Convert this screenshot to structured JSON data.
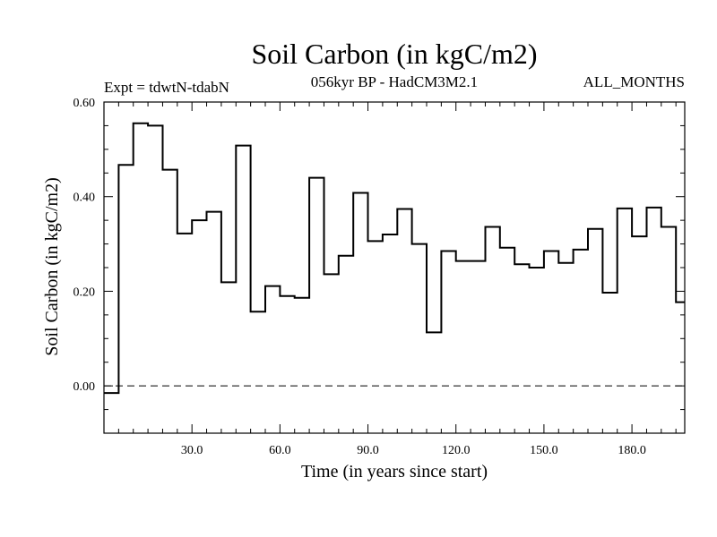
{
  "chart_data": {
    "type": "line",
    "style": "step",
    "title": "Soil Carbon (in kgC/m2)",
    "subtitle_left": "Expt = tdwtN-tdabN",
    "subtitle_center": "056kyr BP - HadCM3M2.1",
    "subtitle_right": "ALL_MONTHS",
    "xlabel": "Time (in years since start)",
    "ylabel": "Soil Carbon (in kgC/m2)",
    "xlim": [
      0,
      198
    ],
    "ylim": [
      -0.1,
      0.6
    ],
    "x_ticks": [
      30,
      60,
      90,
      120,
      150,
      180
    ],
    "x_tick_labels": [
      "30.0",
      "60.0",
      "90.0",
      "120.0",
      "150.0",
      "180.0"
    ],
    "y_ticks": [
      0.0,
      0.2,
      0.4,
      0.6
    ],
    "y_tick_labels": [
      "0.00",
      "0.20",
      "0.40",
      "0.60"
    ],
    "zero_line": "dashed",
    "bin_width": 5,
    "series": [
      {
        "name": "Soil Carbon",
        "x_start": [
          0,
          5,
          10,
          15,
          20,
          25,
          30,
          35,
          40,
          45,
          50,
          55,
          60,
          65,
          70,
          75,
          80,
          85,
          90,
          95,
          100,
          105,
          110,
          115,
          120,
          125,
          130,
          135,
          140,
          145,
          150,
          155,
          160,
          165,
          170,
          175,
          180,
          185,
          190,
          195
        ],
        "values": [
          -0.015,
          0.467,
          0.555,
          0.55,
          0.457,
          0.322,
          0.35,
          0.368,
          0.219,
          0.508,
          0.157,
          0.211,
          0.19,
          0.186,
          0.44,
          0.236,
          0.275,
          0.408,
          0.306,
          0.32,
          0.374,
          0.3,
          0.113,
          0.285,
          0.264,
          0.264,
          0.336,
          0.292,
          0.257,
          0.25,
          0.285,
          0.26,
          0.288,
          0.332,
          0.197,
          0.375,
          0.316,
          0.377,
          0.336,
          0.177
        ]
      }
    ]
  }
}
